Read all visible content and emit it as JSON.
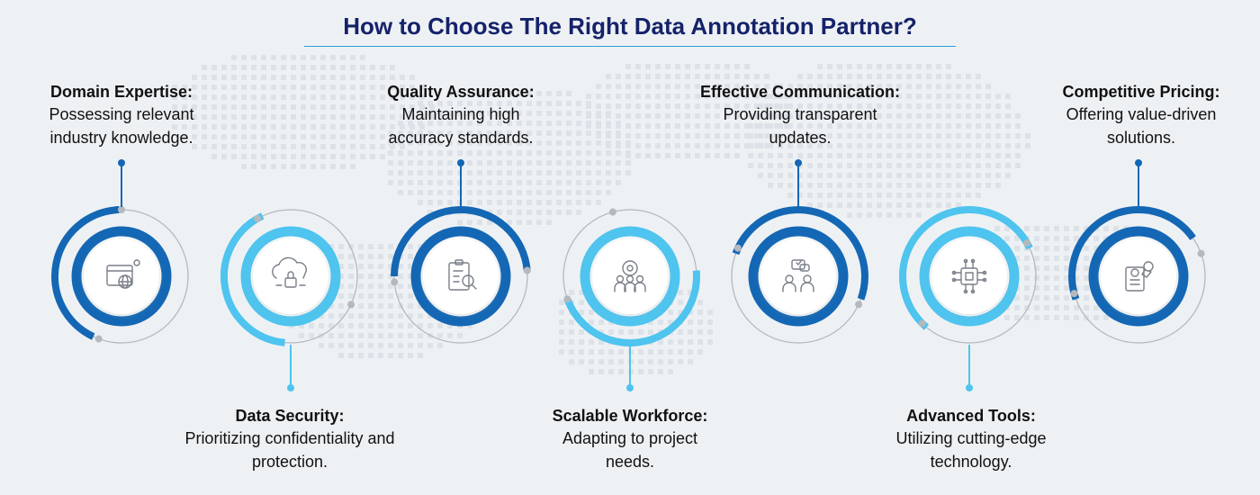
{
  "title": "How to Choose The Right Data Annotation Partner?",
  "colors": {
    "dark_blue": "#1467b4",
    "light_blue": "#4ec4ee",
    "gray": "#b5b8bd",
    "title": "#15226a"
  },
  "items": [
    {
      "heading": "Domain Expertise:",
      "description": "Possessing relevant industry knowledge.",
      "icon": "web-globe-icon",
      "ring": "dark",
      "position": "top"
    },
    {
      "heading": "Data Security:",
      "description": "Prioritizing confidentiality and protection.",
      "icon": "cloud-lock-icon",
      "ring": "light",
      "position": "bottom"
    },
    {
      "heading": "Quality Assurance:",
      "description": "Maintaining high accuracy standards.",
      "icon": "checklist-magnifier-icon",
      "ring": "dark",
      "position": "top"
    },
    {
      "heading": "Scalable Workforce:",
      "description": "Adapting to project needs.",
      "icon": "team-gear-icon",
      "ring": "light",
      "position": "bottom"
    },
    {
      "heading": "Effective Communication:",
      "description": "Providing transparent updates.",
      "icon": "chat-people-icon",
      "ring": "dark",
      "position": "top"
    },
    {
      "heading": "Advanced Tools:",
      "description": "Utilizing cutting-edge technology.",
      "icon": "circuit-chip-icon",
      "ring": "light",
      "position": "bottom"
    },
    {
      "heading": "Competitive Pricing:",
      "description": "Offering value-driven solutions.",
      "icon": "price-tag-document-icon",
      "ring": "dark",
      "position": "top"
    }
  ]
}
